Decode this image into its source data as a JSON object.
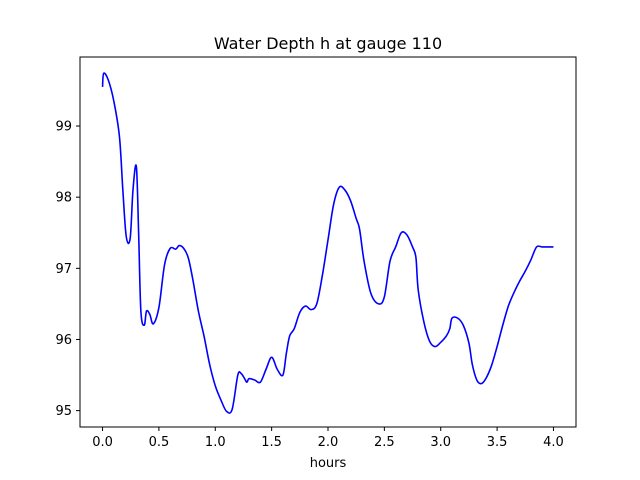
{
  "chart_data": {
    "type": "line",
    "title": "Water Depth h at gauge 110",
    "xlabel": "hours",
    "ylabel": "",
    "xlim": [
      -0.2,
      4.2
    ],
    "ylim": [
      94.77,
      99.97
    ],
    "xticks": [
      0.0,
      0.5,
      1.0,
      1.5,
      2.0,
      2.5,
      3.0,
      3.5,
      4.0
    ],
    "xtick_labels": [
      "0.0",
      "0.5",
      "1.0",
      "1.5",
      "2.0",
      "2.5",
      "3.0",
      "3.5",
      "4.0"
    ],
    "yticks": [
      95,
      96,
      97,
      98,
      99
    ],
    "ytick_labels": [
      "95",
      "96",
      "97",
      "98",
      "99"
    ],
    "grid": false,
    "series": [
      {
        "color": "#0000ff",
        "x": [
          0.0,
          0.01,
          0.05,
          0.1,
          0.15,
          0.18,
          0.21,
          0.245,
          0.27,
          0.3,
          0.32,
          0.34,
          0.37,
          0.39,
          0.42,
          0.45,
          0.5,
          0.55,
          0.6,
          0.65,
          0.68,
          0.72,
          0.76,
          0.8,
          0.85,
          0.9,
          0.95,
          1.0,
          1.05,
          1.1,
          1.15,
          1.2,
          1.23,
          1.26,
          1.28,
          1.3,
          1.35,
          1.4,
          1.45,
          1.5,
          1.55,
          1.6,
          1.63,
          1.66,
          1.7,
          1.75,
          1.8,
          1.85,
          1.9,
          1.95,
          2.0,
          2.05,
          2.1,
          2.15,
          2.2,
          2.25,
          2.28,
          2.32,
          2.38,
          2.45,
          2.5,
          2.55,
          2.6,
          2.65,
          2.7,
          2.75,
          2.78,
          2.8,
          2.85,
          2.9,
          2.95,
          3.0,
          3.05,
          3.08,
          3.1,
          3.15,
          3.2,
          3.25,
          3.28,
          3.32,
          3.36,
          3.4,
          3.45,
          3.5,
          3.55,
          3.6,
          3.65,
          3.7,
          3.75,
          3.8,
          3.85,
          3.9,
          3.95,
          4.0
        ],
        "values": [
          99.55,
          99.74,
          99.65,
          99.35,
          98.85,
          98.1,
          97.45,
          97.42,
          98.1,
          98.43,
          97.5,
          96.4,
          96.2,
          96.4,
          96.35,
          96.22,
          96.45,
          97.05,
          97.28,
          97.27,
          97.32,
          97.28,
          97.15,
          96.85,
          96.4,
          96.05,
          95.65,
          95.35,
          95.15,
          94.99,
          95.02,
          95.5,
          95.52,
          95.45,
          95.4,
          95.45,
          95.43,
          95.4,
          95.58,
          95.75,
          95.58,
          95.5,
          95.8,
          96.05,
          96.15,
          96.38,
          96.47,
          96.42,
          96.5,
          96.9,
          97.4,
          97.9,
          98.14,
          98.1,
          97.95,
          97.7,
          97.55,
          97.1,
          96.65,
          96.5,
          96.6,
          97.1,
          97.3,
          97.5,
          97.47,
          97.3,
          97.15,
          96.7,
          96.25,
          95.98,
          95.9,
          95.96,
          96.05,
          96.15,
          96.3,
          96.3,
          96.2,
          95.95,
          95.65,
          95.43,
          95.38,
          95.45,
          95.63,
          95.9,
          96.2,
          96.47,
          96.66,
          96.82,
          96.96,
          97.12,
          97.3,
          97.3,
          97.3,
          97.3
        ]
      }
    ]
  }
}
